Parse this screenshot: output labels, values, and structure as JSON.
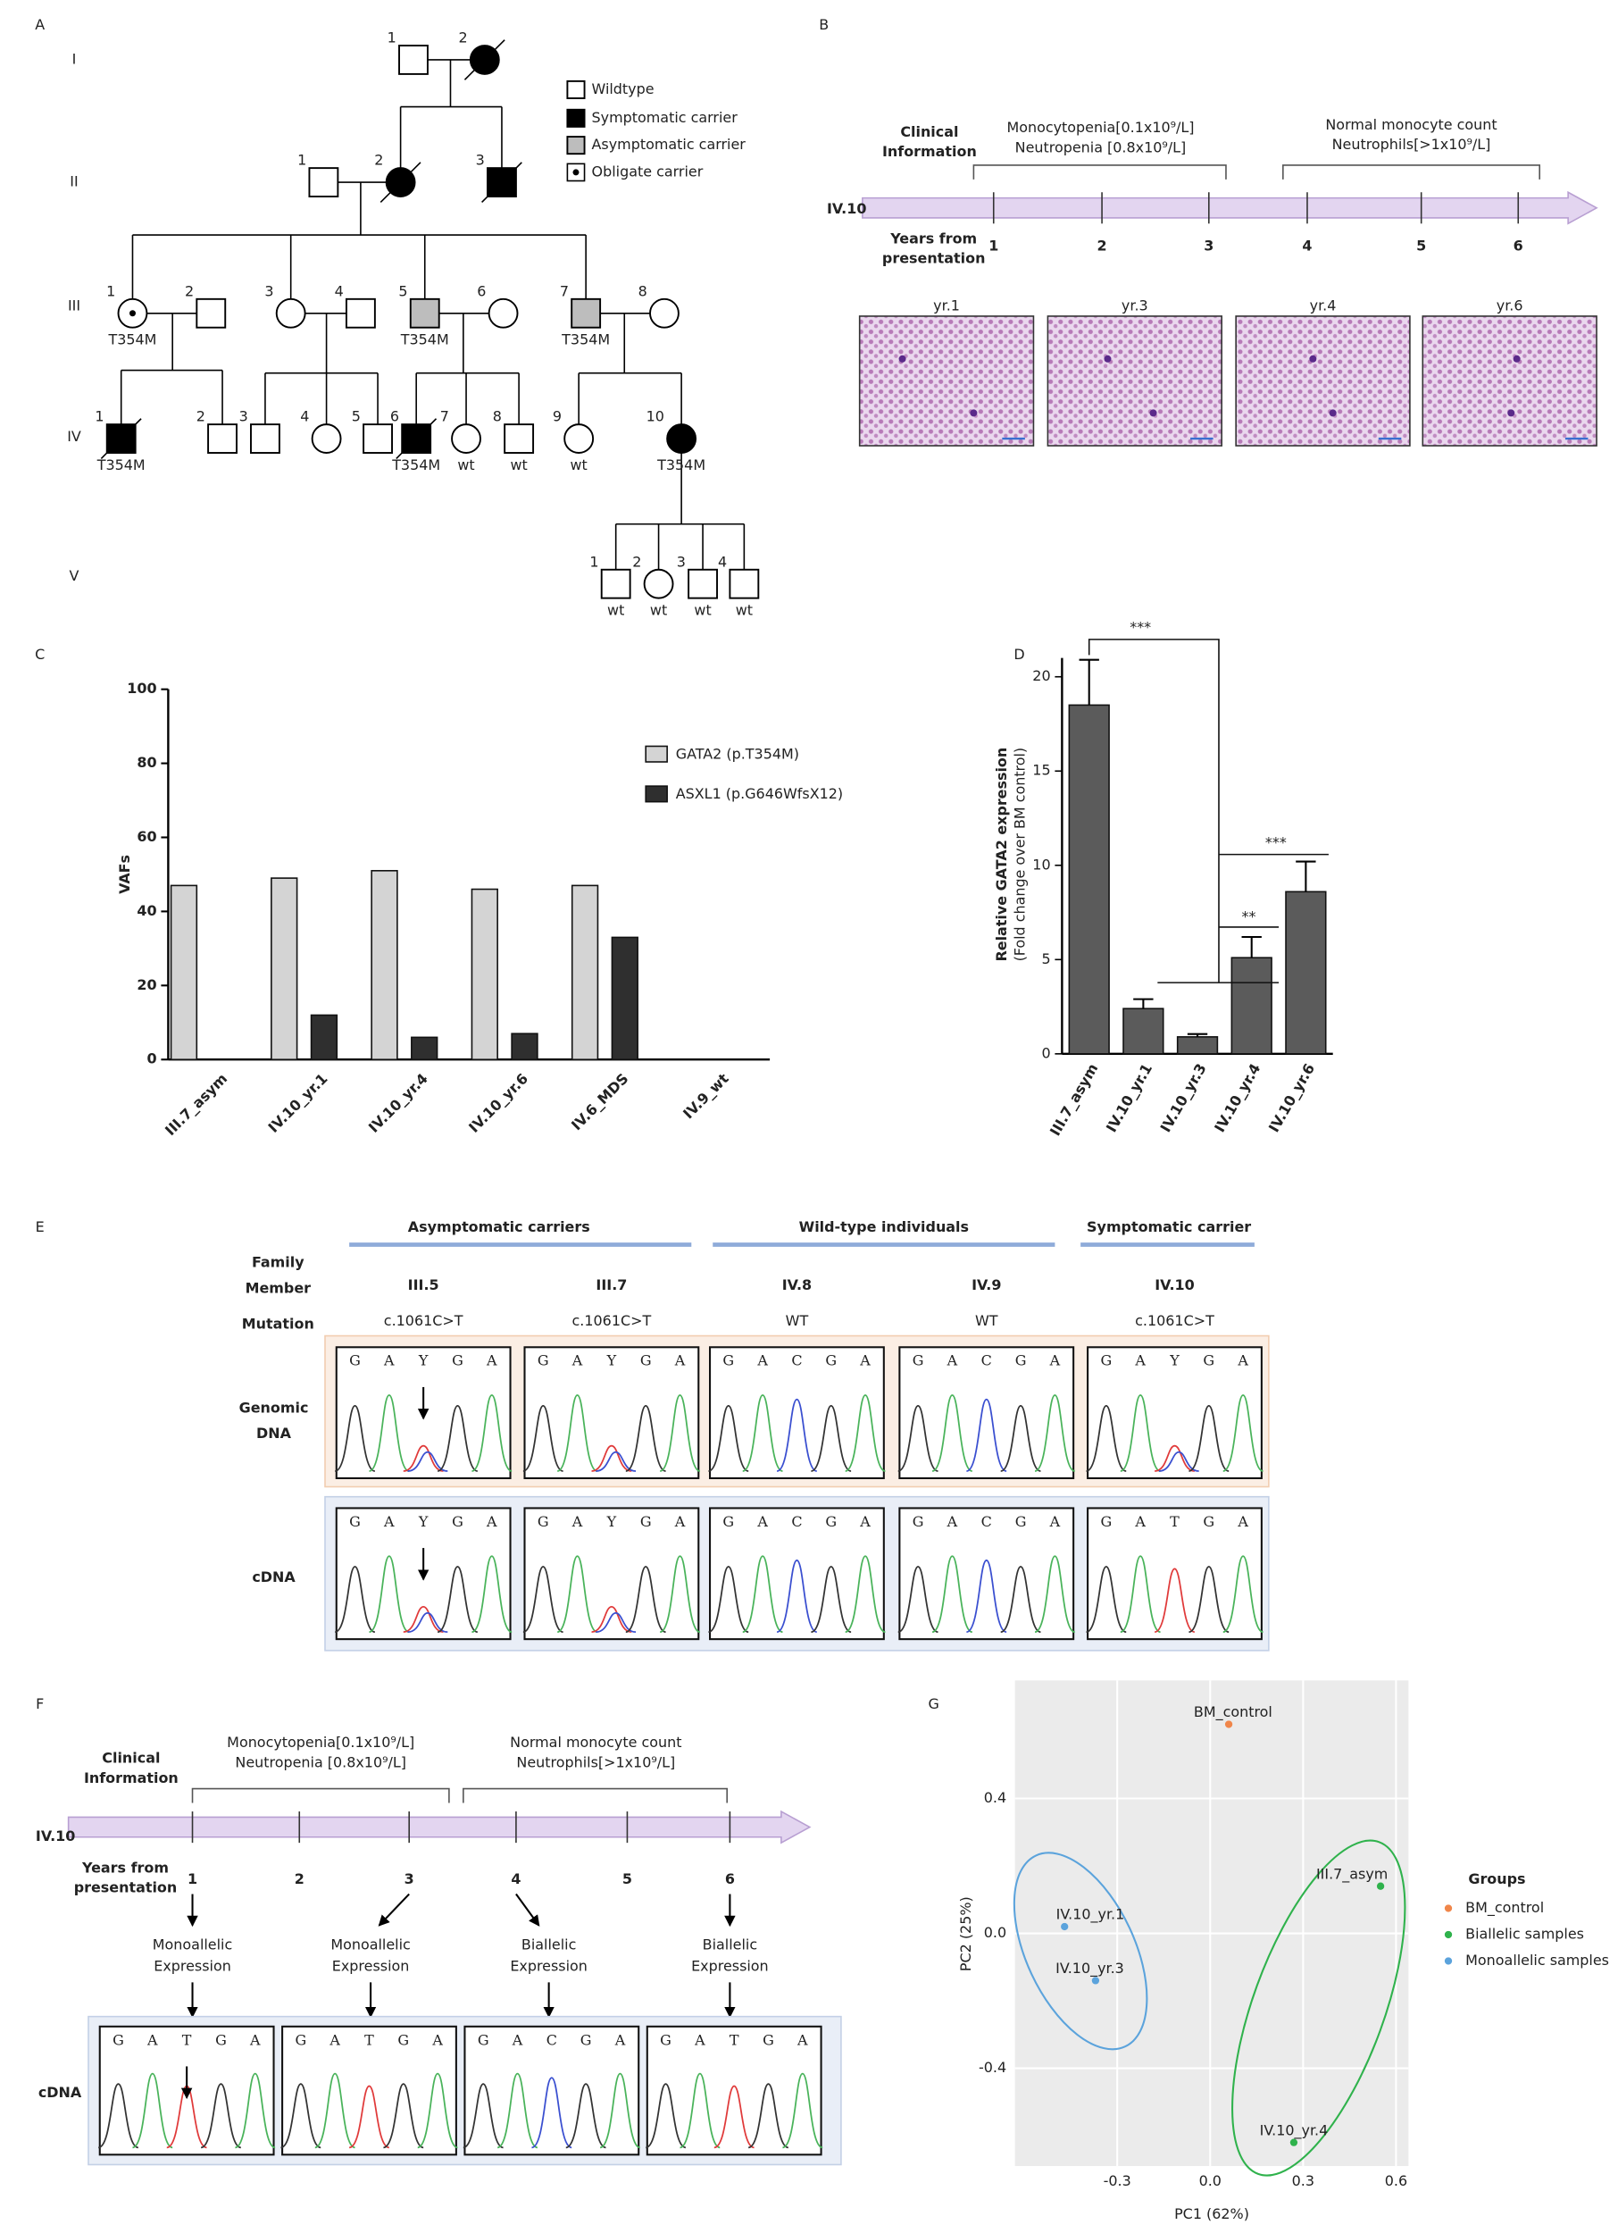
{
  "panel_labels": [
    "A",
    "B",
    "C",
    "D",
    "E",
    "F",
    "G"
  ],
  "pedigree": {
    "generations": [
      "I",
      "II",
      "III",
      "IV",
      "V"
    ],
    "legend": [
      "Wildtype",
      "Symptomatic carrier",
      "Asymptomatic carrier",
      "Obligate carrier"
    ],
    "individuals": [
      {
        "label": "1",
        "sex": "M",
        "status": "wildtype"
      },
      {
        "label": "2",
        "sex": "F",
        "status": "symptomatic",
        "deceased": true
      },
      {
        "label": "1",
        "sex": "M",
        "status": "wildtype"
      },
      {
        "label": "2",
        "sex": "F",
        "status": "symptomatic",
        "deceased": true
      },
      {
        "label": "3",
        "sex": "M",
        "status": "symptomatic",
        "deceased": true
      },
      {
        "label": "1",
        "sex": "F",
        "status": "obligate",
        "genotype": "T354M"
      },
      {
        "label": "2",
        "sex": "M",
        "status": "wildtype"
      },
      {
        "label": "3",
        "sex": "F",
        "status": "wildtype"
      },
      {
        "label": "4",
        "sex": "M",
        "status": "wildtype"
      },
      {
        "label": "5",
        "sex": "M",
        "status": "asymptomatic",
        "genotype": "T354M"
      },
      {
        "label": "6",
        "sex": "F",
        "status": "wildtype"
      },
      {
        "label": "7",
        "sex": "M",
        "status": "asymptomatic",
        "genotype": "T354M"
      },
      {
        "label": "8",
        "sex": "F",
        "status": "wildtype"
      },
      {
        "label": "1",
        "sex": "M",
        "status": "symptomatic",
        "deceased": true,
        "genotype": "T354M"
      },
      {
        "label": "2",
        "sex": "M",
        "status": "wildtype"
      },
      {
        "label": "3",
        "sex": "M",
        "status": "wildtype"
      },
      {
        "label": "4",
        "sex": "F",
        "status": "wildtype"
      },
      {
        "label": "5",
        "sex": "M",
        "status": "wildtype"
      },
      {
        "label": "6",
        "sex": "M",
        "status": "symptomatic",
        "deceased": true,
        "genotype": "T354M"
      },
      {
        "label": "7",
        "sex": "F",
        "status": "wildtype",
        "genotype": "wt"
      },
      {
        "label": "8",
        "sex": "M",
        "status": "wildtype",
        "genotype": "wt"
      },
      {
        "label": "9",
        "sex": "F",
        "status": "wildtype",
        "genotype": "wt"
      },
      {
        "label": "10",
        "sex": "F",
        "status": "symptomatic",
        "genotype": "T354M"
      },
      {
        "label": "1",
        "sex": "M",
        "status": "wildtype",
        "genotype": "wt"
      },
      {
        "label": "2",
        "sex": "F",
        "status": "wildtype",
        "genotype": "wt"
      },
      {
        "label": "3",
        "sex": "M",
        "status": "wildtype",
        "genotype": "wt"
      },
      {
        "label": "4",
        "sex": "M",
        "status": "wildtype",
        "genotype": "wt"
      }
    ]
  },
  "timeline": {
    "clinical_label": [
      "Clinical",
      "Information"
    ],
    "subject": "IV.10",
    "years_label": [
      "Years from",
      "presentation"
    ],
    "years": [
      1,
      2,
      3,
      4,
      5,
      6
    ],
    "phases": [
      [
        "Monocytopenia[0.1x10⁹/L]",
        "Neutropenia [0.8x10⁹/L]"
      ],
      [
        "Normal monocyte count",
        "Neutrophils[>1x10⁹/L]"
      ]
    ],
    "smears": [
      "yr.1",
      "yr.3",
      "yr.4",
      "yr.6"
    ]
  },
  "sequencing": {
    "groups": [
      "Asymptomatic carriers",
      "Wild-type individuals",
      "Symptomatic carrier"
    ],
    "member_label": [
      "Family",
      "Member"
    ],
    "members": [
      "III.5",
      "III.7",
      "IV.8",
      "IV.9",
      "IV.10"
    ],
    "mutation_label": "Mutation",
    "mutations": [
      "c.1061C>T",
      "c.1061C>T",
      "WT",
      "WT",
      "c.1061C>T"
    ],
    "rows": [
      {
        "label": [
          "Genomic",
          "DNA"
        ],
        "bases": [
          [
            "G",
            "A",
            "Y",
            "G",
            "A"
          ],
          [
            "G",
            "A",
            "Y",
            "G",
            "A"
          ],
          [
            "G",
            "A",
            "C",
            "G",
            "A"
          ],
          [
            "G",
            "A",
            "C",
            "G",
            "A"
          ],
          [
            "G",
            "A",
            "Y",
            "G",
            "A"
          ]
        ]
      },
      {
        "label": [
          "cDNA"
        ],
        "bases": [
          [
            "G",
            "A",
            "Y",
            "G",
            "A"
          ],
          [
            "G",
            "A",
            "Y",
            "G",
            "A"
          ],
          [
            "G",
            "A",
            "C",
            "G",
            "A"
          ],
          [
            "G",
            "A",
            "C",
            "G",
            "A"
          ],
          [
            "G",
            "A",
            "T",
            "G",
            "A"
          ]
        ]
      }
    ]
  },
  "expression_timeline": {
    "clinical_label": [
      "Clinical",
      "Information"
    ],
    "subject": "IV.10",
    "years_label": [
      "Years from",
      "presentation"
    ],
    "years": [
      1,
      2,
      3,
      4,
      5,
      6
    ],
    "phases": [
      [
        "Monocytopenia[0.1x10⁹/L]",
        "Neutropenia [0.8x10⁹/L]"
      ],
      [
        "Normal monocyte count",
        "Neutrophils[>1x10⁹/L]"
      ]
    ],
    "expression": [
      [
        "Monoallelic",
        "Expression"
      ],
      [
        "Monoallelic",
        "Expression"
      ],
      [
        "Biallelic",
        "Expression"
      ],
      [
        "Biallelic",
        "Expression"
      ]
    ],
    "chromatogram_label": "cDNA",
    "chromatograms": [
      [
        "G",
        "A",
        "T",
        "G",
        "A"
      ],
      [
        "G",
        "A",
        "T",
        "G",
        "A"
      ],
      [
        "G",
        "A",
        "C",
        "G",
        "A"
      ],
      [
        "G",
        "A",
        "T",
        "G",
        "A"
      ]
    ]
  },
  "chart_data": [
    {
      "type": "bar",
      "ylabel": "VAFs",
      "categories": [
        "III.7_asym",
        "IV.10_yr.1",
        "IV.10_yr.4",
        "IV.10_yr.6",
        "IV.6_MDS",
        "IV.9_wt"
      ],
      "series": [
        {
          "name": "GATA2 (p.T354M)",
          "color": "#d4d4d4",
          "values": [
            47,
            49,
            51,
            46,
            47,
            0
          ]
        },
        {
          "name": "ASXL1 (p.G646WfsX12)",
          "color": "#2f2f2f",
          "values": [
            0,
            12,
            6,
            7,
            33,
            0
          ]
        }
      ],
      "ylim": [
        0,
        100
      ],
      "yticks": [
        0,
        20,
        40,
        60,
        80,
        100
      ]
    },
    {
      "type": "errorbar",
      "ylabel": "Relative GATA2 expression",
      "ylabel_note": "(Fold change over BM control)",
      "categories": [
        "III.7_asym",
        "IV.10_yr.1",
        "IV.10_yr.3",
        "IV.10_yr.4",
        "IV.10_yr.6"
      ],
      "values": [
        18.5,
        2.4,
        0.9,
        5.1,
        8.6
      ],
      "errors": [
        2.4,
        0.5,
        0.15,
        1.1,
        1.6
      ],
      "color": "#5b5b5b",
      "ylim": [
        0,
        21
      ],
      "yticks": [
        0,
        5,
        10,
        15,
        20
      ],
      "annotations": [
        "***",
        "**",
        "***"
      ]
    },
    {
      "type": "scatter",
      "xlabel": "PC1 (62%)",
      "ylabel": "PC2 (25%)",
      "legend_title": "Groups",
      "series": [
        {
          "name": "BM_control",
          "color": "#f0864a",
          "x": [
            0.06
          ],
          "y": [
            0.62
          ],
          "labels": [
            "BM_control"
          ]
        },
        {
          "name": "Biallelic samples",
          "color": "#2fb24c",
          "x": [
            0.55,
            0.27
          ],
          "y": [
            0.14,
            -0.62
          ],
          "labels": [
            "III.7_asym",
            "IV.10_yr.4"
          ]
        },
        {
          "name": "Monoallelic samples",
          "color": "#5ba3dc",
          "x": [
            -0.47,
            -0.37
          ],
          "y": [
            0.02,
            -0.14
          ],
          "labels": [
            "IV.10_yr.1",
            "IV.10_yr.3"
          ]
        }
      ],
      "xlim": [
        -0.63,
        0.64
      ],
      "ylim": [
        -0.69,
        0.75
      ],
      "xticks": [
        -0.3,
        {
          "value": 0,
          "label": "0.0"
        },
        0.3,
        0.6
      ],
      "yticks": [
        -0.4,
        {
          "value": 0,
          "label": "0.0"
        },
        0.4
      ],
      "grid": true,
      "legend": "right"
    }
  ]
}
